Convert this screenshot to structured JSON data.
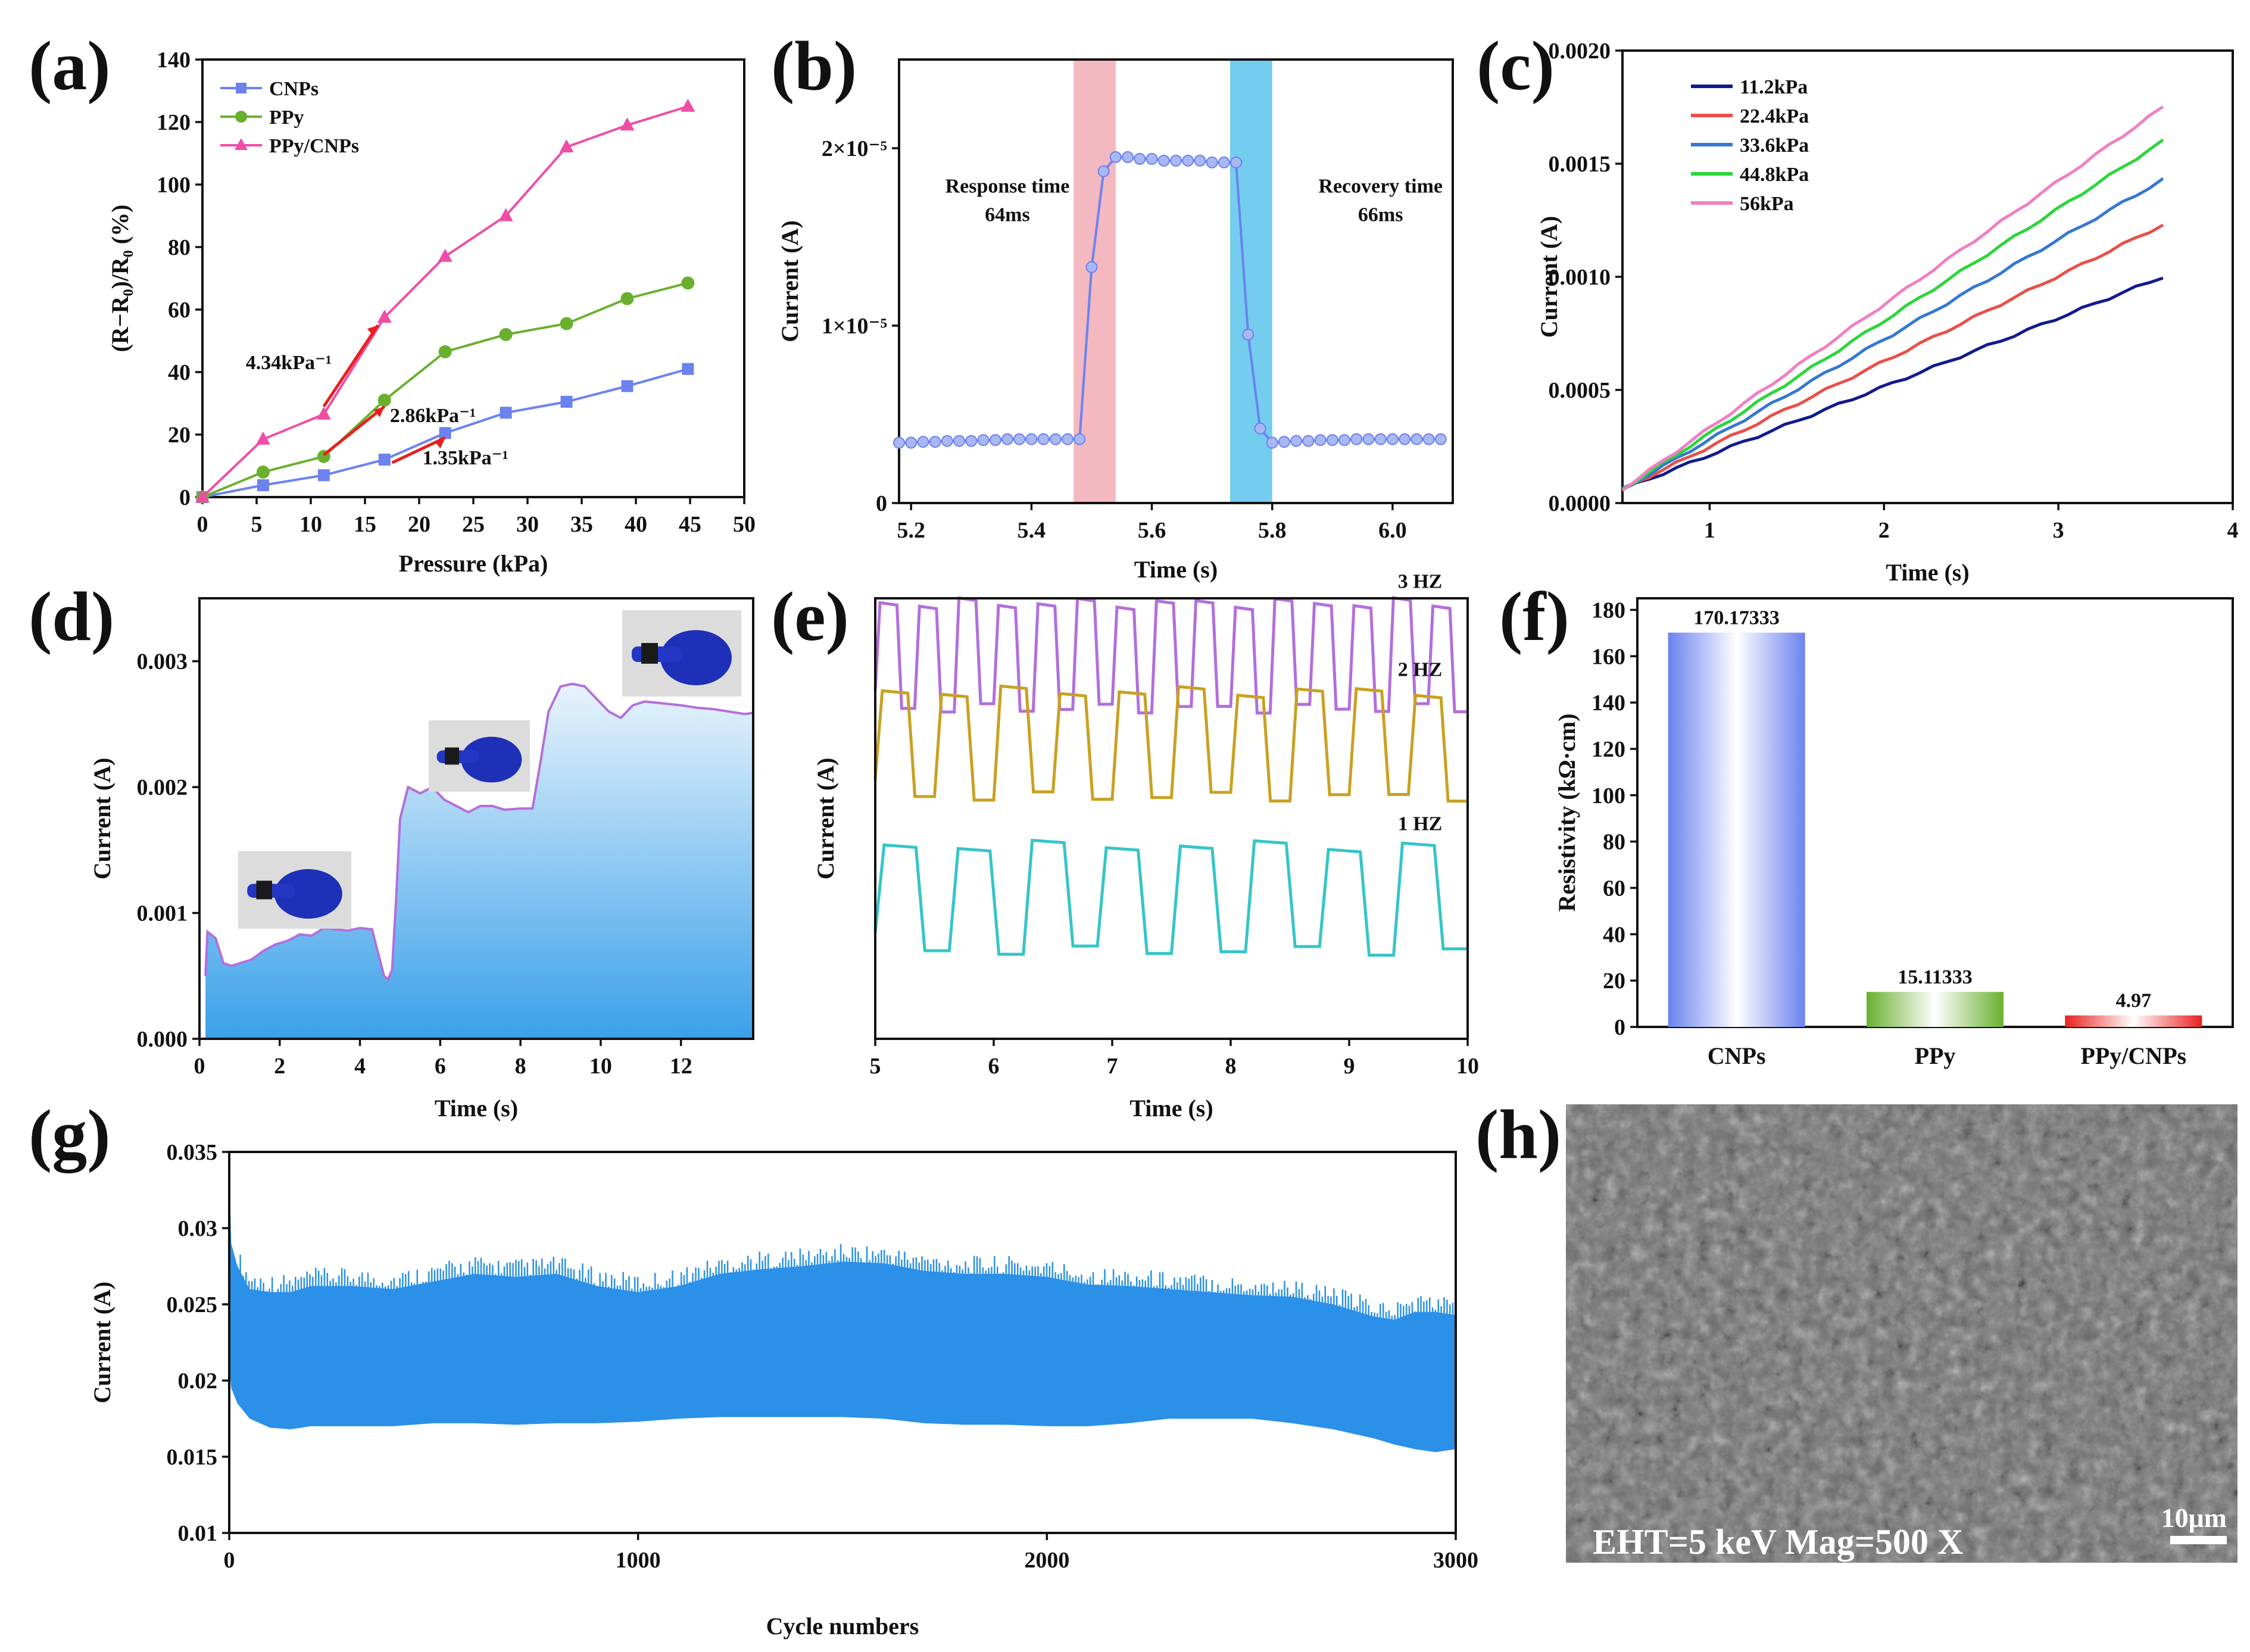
{
  "colors": {
    "cnps": "#6b82ef",
    "ppy": "#6ab02f",
    "ppycnps": "#ef4da6",
    "red": "#e8201f",
    "blue": "#2a90e8",
    "pinkband": "#f4b8c0",
    "cyanband": "#74cdee",
    "violet": "#b26fdc",
    "gold": "#c9a122",
    "teal": "#35c5c8",
    "navy": "#101b8c",
    "c224": "#e8504a",
    "c336": "#3678d2",
    "c448": "#2bd63a",
    "c56": "#f07fc3"
  },
  "chart_data": [
    {
      "id": "a",
      "type": "line",
      "panel_label": "(a)",
      "xlabel": "Pressure (kPa)",
      "ylabel": "(R−R₀)/R₀ (%)",
      "xlim": [
        0,
        50
      ],
      "ylim": [
        0,
        140
      ],
      "xticks": [
        "0",
        "5",
        "10",
        "15",
        "20",
        "25",
        "30",
        "35",
        "40",
        "45",
        "50"
      ],
      "yticks": [
        "0",
        "20",
        "40",
        "60",
        "80",
        "100",
        "120",
        "140"
      ],
      "series": [
        {
          "name": "CNPs",
          "color_key": "cnps",
          "marker": "square",
          "x": [
            0,
            5.6,
            11.2,
            16.8,
            22.4,
            28,
            33.6,
            39.2,
            44.8
          ],
          "y": [
            0,
            3.8,
            7,
            12,
            20.5,
            27,
            30.5,
            35.5,
            41
          ]
        },
        {
          "name": "PPy",
          "color_key": "ppy",
          "marker": "circle",
          "x": [
            0,
            5.6,
            11.2,
            16.8,
            22.4,
            28,
            33.6,
            39.2,
            44.8
          ],
          "y": [
            0,
            8,
            13,
            31,
            46.5,
            52,
            55.5,
            63.5,
            68.5
          ]
        },
        {
          "name": "PPy/CNPs",
          "color_key": "ppycnps",
          "marker": "triangle",
          "x": [
            0,
            5.6,
            11.2,
            16.8,
            22.4,
            28,
            33.6,
            39.2,
            44.8
          ],
          "y": [
            0,
            18.5,
            26.5,
            57.5,
            77,
            90,
            112,
            119,
            125
          ]
        }
      ],
      "fits": [
        {
          "x": [
            11.2,
            16.2
          ],
          "y": [
            29,
            55
          ]
        },
        {
          "x": [
            11.2,
            16.8
          ],
          "y": [
            13.5,
            29
          ]
        },
        {
          "x": [
            17.5,
            22.4
          ],
          "y": [
            11,
            19
          ]
        }
      ],
      "annotations": [
        {
          "text": "4.34kPa⁻¹",
          "x": 4,
          "y": 41
        },
        {
          "text": "2.86kPa⁻¹",
          "x": 17.3,
          "y": 24
        },
        {
          "text": "1.35kPa⁻¹",
          "x": 20.3,
          "y": 10.5
        }
      ]
    },
    {
      "id": "b",
      "type": "line",
      "panel_label": "(b)",
      "xlabel": "Time (s)",
      "ylabel": "Current (A)",
      "xlim": [
        5.18,
        6.1
      ],
      "ylim": [
        0,
        2.5e-05
      ],
      "xticks": [
        "5.2",
        "5.4",
        "5.6",
        "5.8",
        "6.0"
      ],
      "xtick_vals": [
        5.2,
        5.4,
        5.6,
        5.8,
        6.0
      ],
      "yticks": [
        "0",
        "1×10⁻⁵",
        "2×10⁻⁵"
      ],
      "ytick_vals": [
        0,
        1e-05,
        2e-05
      ],
      "bands": [
        {
          "x": [
            5.47,
            5.54
          ],
          "color_key": "pinkband"
        },
        {
          "x": [
            5.73,
            5.8
          ],
          "color_key": "cyanband"
        }
      ],
      "series": [
        {
          "name": "current",
          "color_key": "cnps",
          "x": [
            5.18,
            5.2,
            5.22,
            5.24,
            5.26,
            5.28,
            5.3,
            5.32,
            5.34,
            5.36,
            5.38,
            5.4,
            5.42,
            5.44,
            5.46,
            5.48,
            5.5,
            5.52,
            5.54,
            5.56,
            5.58,
            5.6,
            5.62,
            5.64,
            5.66,
            5.68,
            5.7,
            5.72,
            5.74,
            5.76,
            5.78,
            5.8,
            5.82,
            5.84,
            5.86,
            5.88,
            5.9,
            5.92,
            5.94,
            5.96,
            5.98,
            6.0,
            6.02,
            6.04,
            6.06,
            6.08
          ],
          "y": [
            3.4e-06,
            3.4e-06,
            3.45e-06,
            3.45e-06,
            3.5e-06,
            3.5e-06,
            3.5e-06,
            3.55e-06,
            3.55e-06,
            3.6e-06,
            3.6e-06,
            3.6e-06,
            3.6e-06,
            3.6e-06,
            3.6e-06,
            3.6e-06,
            1.33e-05,
            1.87e-05,
            1.95e-05,
            1.95e-05,
            1.94e-05,
            1.94e-05,
            1.93e-05,
            1.93e-05,
            1.93e-05,
            1.93e-05,
            1.92e-05,
            1.92e-05,
            1.92e-05,
            9.5e-06,
            4.2e-06,
            3.4e-06,
            3.45e-06,
            3.5e-06,
            3.5e-06,
            3.55e-06,
            3.55e-06,
            3.55e-06,
            3.6e-06,
            3.6e-06,
            3.6e-06,
            3.6e-06,
            3.6e-06,
            3.6e-06,
            3.6e-06,
            3.6e-06
          ]
        }
      ],
      "annotations": [
        {
          "lines": [
            "Response time",
            "64ms"
          ],
          "x": 5.36,
          "y": 1.75e-05
        },
        {
          "lines": [
            "Recovery time",
            "66ms"
          ],
          "x": 5.98,
          "y": 1.75e-05
        }
      ]
    },
    {
      "id": "c",
      "type": "line",
      "panel_label": "(c)",
      "xlabel": "Time (s)",
      "ylabel": "Current (A)",
      "xlim": [
        0.5,
        4
      ],
      "ylim": [
        0,
        0.002
      ],
      "xticks": [
        "1",
        "2",
        "3",
        "4"
      ],
      "xtick_vals": [
        1,
        2,
        3,
        4
      ],
      "yticks": [
        "0.0000",
        "0.0005",
        "0.0010",
        "0.0015",
        "0.0020"
      ],
      "ytick_vals": [
        0,
        0.0005,
        0.001,
        0.0015,
        0.002
      ],
      "series": [
        {
          "name": "11.2kPa",
          "color_key": "navy",
          "x": [
            0.5,
            3.6
          ],
          "y": [
            6e-05,
            0.001
          ]
        },
        {
          "name": "22.4kPa",
          "color_key": "c224",
          "x": [
            0.5,
            3.6
          ],
          "y": [
            6e-05,
            0.00123
          ]
        },
        {
          "name": "33.6kPa",
          "color_key": "c336",
          "x": [
            0.5,
            3.6
          ],
          "y": [
            6e-05,
            0.00143
          ]
        },
        {
          "name": "44.8kPa",
          "color_key": "c448",
          "x": [
            0.5,
            3.6
          ],
          "y": [
            6e-05,
            0.0016
          ]
        },
        {
          "name": "56kPa",
          "color_key": "c56",
          "x": [
            0.5,
            3.6
          ],
          "y": [
            6e-05,
            0.00175
          ]
        }
      ]
    },
    {
      "id": "d",
      "type": "area",
      "panel_label": "(d)",
      "xlabel": "Time (s)",
      "ylabel": "Current (A)",
      "xlim": [
        0,
        13.8
      ],
      "ylim": [
        0,
        0.0035
      ],
      "xticks": [
        "0",
        "2",
        "4",
        "6",
        "8",
        "10",
        "12"
      ],
      "xtick_vals": [
        0,
        2,
        4,
        6,
        8,
        10,
        12
      ],
      "yticks": [
        "0.000",
        "0.001",
        "0.002",
        "0.003"
      ],
      "ytick_vals": [
        0,
        0.001,
        0.002,
        0.003
      ],
      "series": [
        {
          "name": "current",
          "color_key": "violet",
          "x": [
            0.15,
            0.2,
            0.4,
            0.6,
            0.8,
            1.0,
            1.3,
            1.6,
            1.9,
            2.2,
            2.5,
            2.8,
            3.1,
            3.4,
            3.7,
            4.0,
            4.3,
            4.6,
            4.7,
            4.8,
            4.9,
            5.0,
            5.2,
            5.5,
            5.8,
            6.1,
            6.4,
            6.7,
            7.0,
            7.3,
            7.6,
            8.0,
            8.3,
            8.5,
            8.7,
            9.0,
            9.3,
            9.6,
            9.9,
            10.2,
            10.5,
            10.8,
            11.1,
            11.4,
            11.7,
            12.0,
            12.4,
            12.8,
            13.2,
            13.6,
            13.8
          ],
          "y": [
            0.0005,
            0.00085,
            0.0008,
            0.0006,
            0.00058,
            0.0006,
            0.00063,
            0.0007,
            0.00075,
            0.00078,
            0.00083,
            0.00082,
            0.00088,
            0.00087,
            0.00086,
            0.00088,
            0.00087,
            0.0005,
            0.00047,
            0.00055,
            0.0011,
            0.00175,
            0.002,
            0.00195,
            0.002,
            0.0019,
            0.00185,
            0.0018,
            0.00185,
            0.00185,
            0.00182,
            0.00183,
            0.00183,
            0.0022,
            0.0026,
            0.0028,
            0.00282,
            0.0028,
            0.0027,
            0.0026,
            0.00255,
            0.00265,
            0.00268,
            0.00267,
            0.00266,
            0.00265,
            0.00263,
            0.00262,
            0.0026,
            0.00258,
            0.00259
          ]
        }
      ]
    },
    {
      "id": "e",
      "type": "line",
      "panel_label": "(e)",
      "xlabel": "Time (s)",
      "ylabel": "Current (A)",
      "xlim": [
        5,
        10
      ],
      "xticks": [
        "5",
        "6",
        "7",
        "8",
        "9",
        "10"
      ],
      "xtick_vals": [
        5,
        6,
        7,
        8,
        9,
        10
      ],
      "series": [
        {
          "name": "3 HZ",
          "color_key": "violet",
          "freq": 3,
          "base_frac": 0.84,
          "hi_frac": 0.87,
          "lo_frac": 0.7
        },
        {
          "name": "2 HZ",
          "color_key": "gold",
          "freq": 2,
          "base_frac": 0.47,
          "hi_frac": 0.67,
          "lo_frac": 0.39
        },
        {
          "name": "1 HZ",
          "color_key": "teal",
          "freq": 1.6,
          "base_frac": 0.05,
          "hi_frac": 0.32,
          "lo_frac": 0.1
        }
      ]
    },
    {
      "id": "f",
      "type": "bar",
      "panel_label": "(f)",
      "xlabel": "",
      "ylabel": "Resistivity (kΩ·cm)",
      "ylim": [
        0,
        185
      ],
      "yticks": [
        "0",
        "20",
        "40",
        "60",
        "80",
        "100",
        "120",
        "140",
        "160",
        "180"
      ],
      "ytick_vals": [
        0,
        20,
        40,
        60,
        80,
        100,
        120,
        140,
        160,
        180
      ],
      "categories": [
        "CNPs",
        "PPy",
        "PPy/CNPs"
      ],
      "values": [
        170.17333,
        15.11333,
        4.97
      ],
      "value_labels": [
        "170.17333",
        "15.11333",
        "4.97"
      ],
      "bar_color_keys": [
        "cnps",
        "ppy",
        "red"
      ]
    },
    {
      "id": "g",
      "type": "area",
      "panel_label": "(g)",
      "xlabel": "Cycle numbers",
      "ylabel": "Current (A)",
      "xlim": [
        0,
        3000
      ],
      "ylim": [
        0.01,
        0.035
      ],
      "xticks": [
        "0",
        "1000",
        "2000",
        "3000"
      ],
      "xtick_vals": [
        0,
        1000,
        2000,
        3000
      ],
      "yticks": [
        "0.01",
        "0.015",
        "0.02",
        "0.025",
        "0.03",
        "0.035"
      ],
      "ytick_vals": [
        0.01,
        0.015,
        0.02,
        0.025,
        0.03,
        0.035
      ],
      "envelope": {
        "x": [
          0,
          5,
          20,
          50,
          100,
          150,
          200,
          300,
          400,
          500,
          600,
          700,
          800,
          900,
          1000,
          1100,
          1200,
          1300,
          1400,
          1500,
          1600,
          1700,
          1800,
          1900,
          2000,
          2100,
          2200,
          2300,
          2400,
          2500,
          2600,
          2700,
          2800,
          2850,
          2900,
          2950,
          3000
        ],
        "upper": [
          0.034,
          0.029,
          0.0275,
          0.026,
          0.0258,
          0.0258,
          0.0262,
          0.0262,
          0.026,
          0.0265,
          0.027,
          0.0268,
          0.027,
          0.0262,
          0.0258,
          0.0262,
          0.027,
          0.0273,
          0.0275,
          0.0278,
          0.0277,
          0.0272,
          0.027,
          0.027,
          0.0268,
          0.0263,
          0.0262,
          0.026,
          0.0258,
          0.0256,
          0.0255,
          0.025,
          0.0242,
          0.024,
          0.0245,
          0.0245,
          0.0243
        ],
        "lower": [
          0.021,
          0.0195,
          0.0185,
          0.0175,
          0.0169,
          0.0168,
          0.017,
          0.017,
          0.017,
          0.0172,
          0.0172,
          0.0171,
          0.0172,
          0.0172,
          0.0173,
          0.0175,
          0.0176,
          0.0176,
          0.0176,
          0.0176,
          0.0175,
          0.0172,
          0.0171,
          0.0171,
          0.017,
          0.017,
          0.0172,
          0.0175,
          0.0175,
          0.0175,
          0.0172,
          0.0168,
          0.0162,
          0.0158,
          0.0155,
          0.0153,
          0.0155
        ]
      }
    }
  ],
  "sem": {
    "panel_label": "(h)",
    "info": "EHT=5 keV Mag=500 X",
    "scale": "10μm"
  }
}
